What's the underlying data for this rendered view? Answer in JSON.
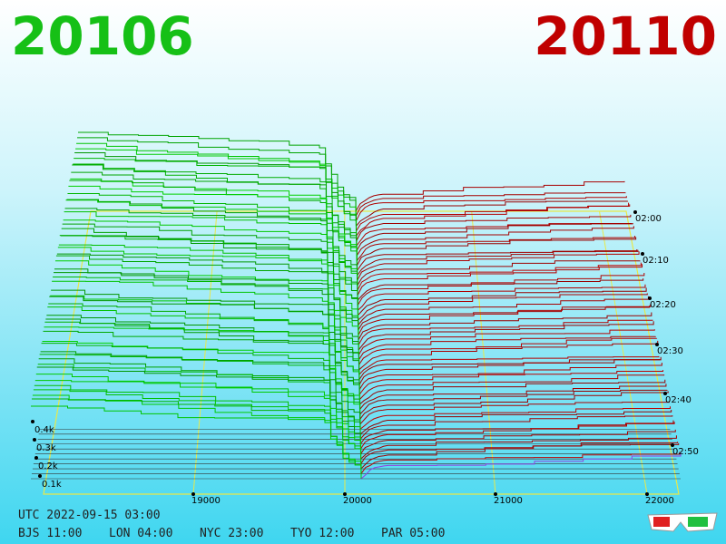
{
  "header": {
    "bid": "20106",
    "ask": "20110"
  },
  "price_axis": [
    "19000",
    "20000",
    "21000",
    "22000"
  ],
  "depth_axis": [
    "0.4k",
    "0.3k",
    "0.2k",
    "0.1k"
  ],
  "time_axis": [
    "02:00",
    "02:10",
    "02:20",
    "02:30",
    "02:40",
    "02:50"
  ],
  "clock": {
    "utc": "UTC 2022-09-15 03:00",
    "zones": [
      "BJS 11:00",
      "LON 04:00",
      "NYC 23:00",
      "TYO 12:00",
      "PAR 05:00"
    ]
  }
}
